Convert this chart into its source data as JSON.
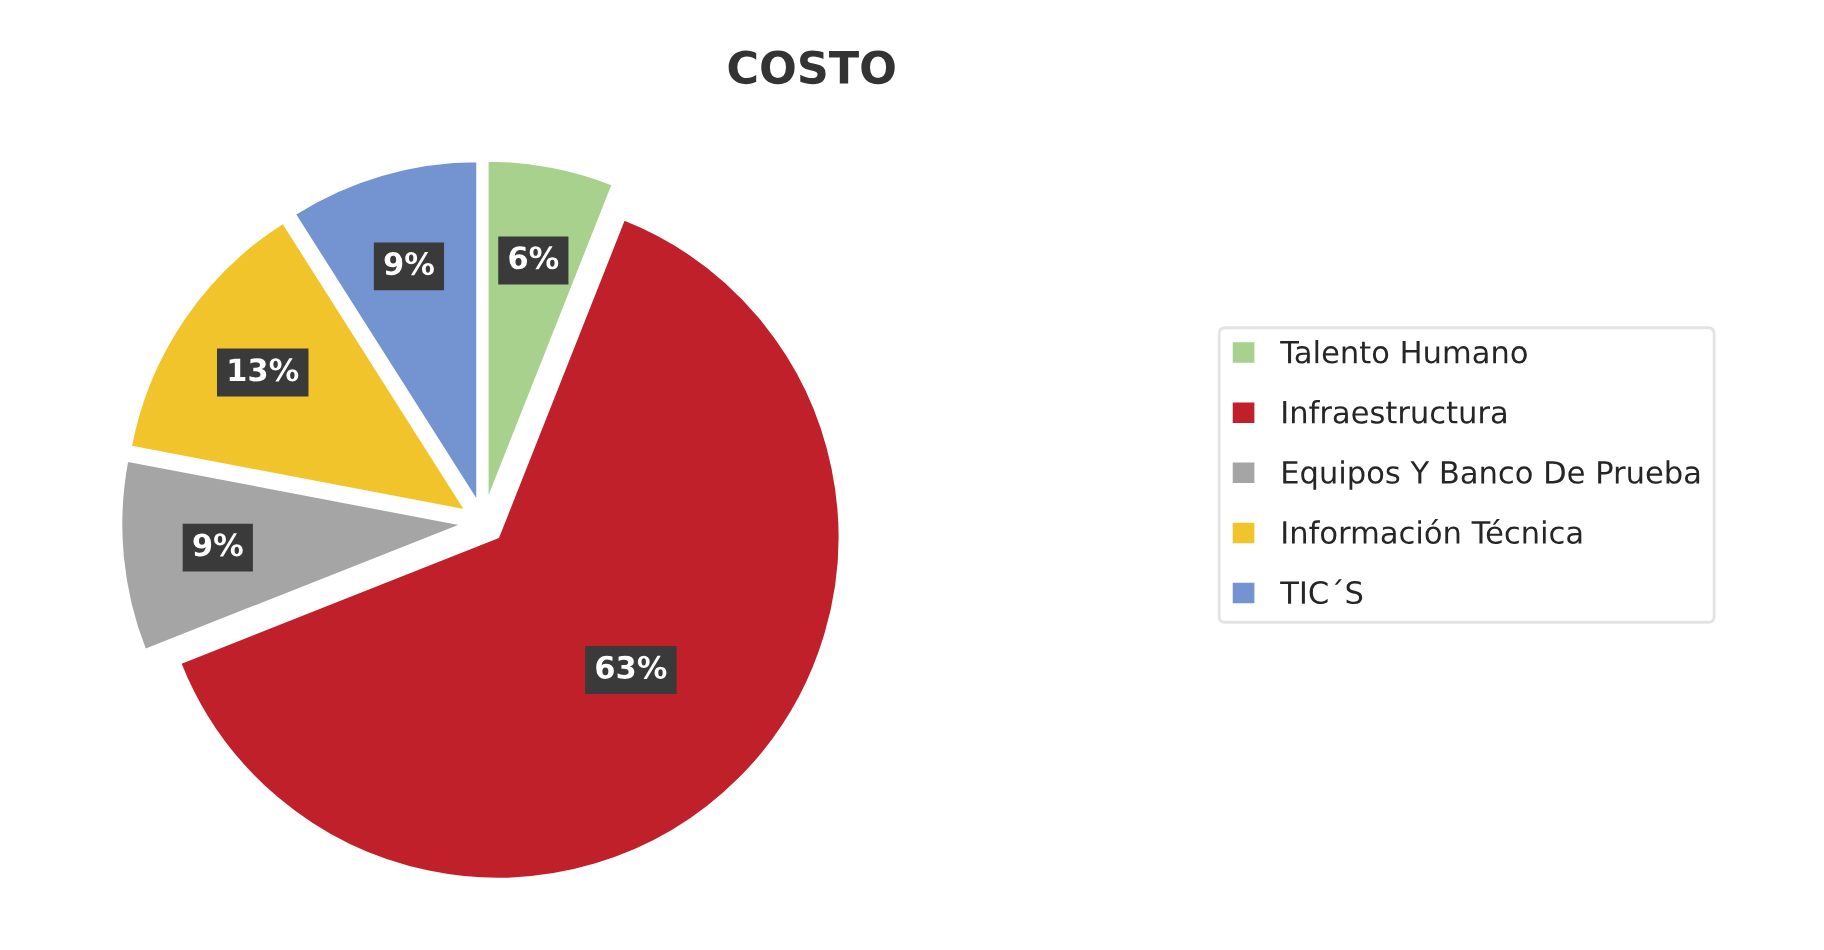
{
  "chart_data": {
    "type": "pie",
    "title": "COSTO",
    "categories": [
      "Talento Humano",
      "Infraestructura",
      "Equipos Y Banco De Prueba",
      "Información Técnica",
      "TIC´S"
    ],
    "values": [
      6,
      63,
      9,
      13,
      9
    ],
    "colors": [
      "#a9d18e",
      "#c0202a",
      "#a5a5a5",
      "#f2c42c",
      "#7394d0"
    ],
    "value_labels": [
      "6%",
      "63%",
      "9%",
      "13%",
      "9%"
    ],
    "legend": "right"
  }
}
